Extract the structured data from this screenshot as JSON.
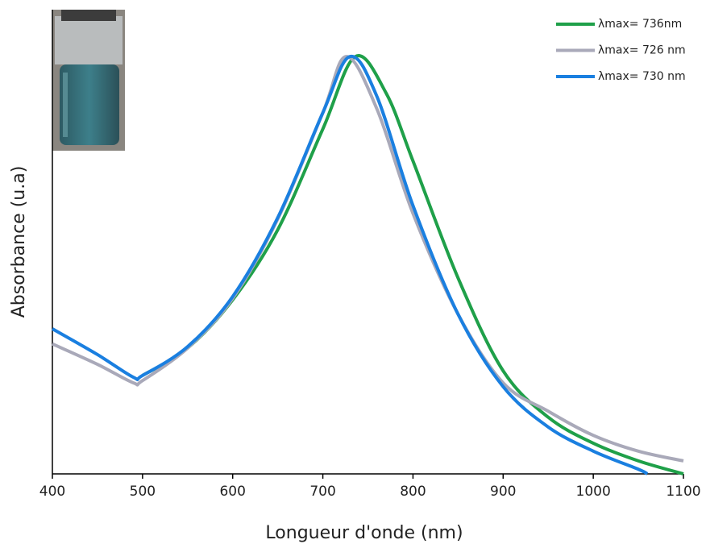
{
  "chart_data": {
    "type": "line",
    "xlabel": "Longueur d'onde (nm)",
    "ylabel": "Absorbance (u.a)",
    "xlim": [
      400,
      1100
    ],
    "xticks": [
      400,
      500,
      600,
      700,
      800,
      900,
      1000,
      1100
    ],
    "ylim": [
      0,
      1
    ],
    "legend": "upper right",
    "series": [
      {
        "name": "λmax= 736nm",
        "color": "#1fa049",
        "x": [
          500,
          550,
          600,
          650,
          700,
          736,
          770,
          800,
          850,
          900,
          950,
          1000,
          1050,
          1100
        ],
        "values": [
          0.212,
          0.271,
          0.375,
          0.526,
          0.743,
          0.899,
          0.821,
          0.674,
          0.422,
          0.222,
          0.122,
          0.066,
          0.028,
          0
        ]
      },
      {
        "name": "λmax= 726 nm",
        "color": "#a9a9b9",
        "x": [
          400,
          450,
          490,
          500,
          550,
          600,
          650,
          700,
          726,
          760,
          800,
          850,
          900,
          950,
          1000,
          1050,
          1100
        ],
        "values": [
          0.28,
          0.236,
          0.196,
          0.201,
          0.271,
          0.378,
          0.549,
          0.778,
          0.899,
          0.786,
          0.561,
          0.344,
          0.196,
          0.135,
          0.083,
          0.049,
          0.028
        ]
      },
      {
        "name": "λmax= 730 nm",
        "color": "#1a7fe0",
        "x": [
          400,
          450,
          490,
          500,
          550,
          600,
          650,
          700,
          730,
          760,
          800,
          850,
          900,
          950,
          1000,
          1050,
          1060
        ],
        "values": [
          0.3125,
          0.257,
          0.208,
          0.212,
          0.274,
          0.382,
          0.552,
          0.778,
          0.899,
          0.813,
          0.578,
          0.344,
          0.188,
          0.101,
          0.049,
          0.01,
          0
        ]
      }
    ]
  }
}
